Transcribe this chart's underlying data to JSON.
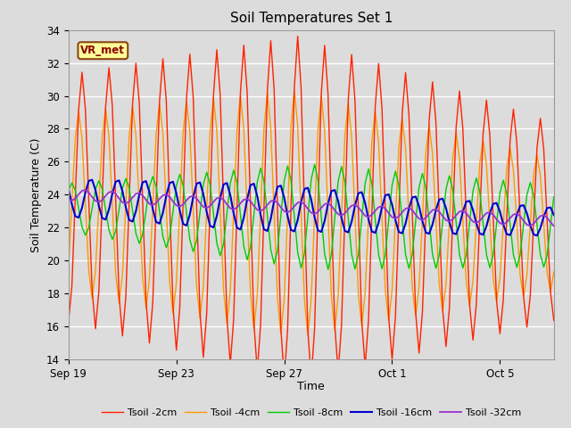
{
  "title": "Soil Temperatures Set 1",
  "xlabel": "Time",
  "ylabel": "Soil Temperature (C)",
  "ylim": [
    14,
    34
  ],
  "bg_color": "#dcdcdc",
  "plot_bg_color": "#dcdcdc",
  "grid_color": "#ffffff",
  "annotation_text": "VR_met",
  "annotation_bg": "#ffff99",
  "annotation_border": "#8B4513",
  "x_ticks_labels": [
    "Sep 19",
    "Sep 23",
    "Sep 27",
    "Oct 1",
    "Oct 5"
  ],
  "x_ticks_positions": [
    0,
    4,
    8,
    12,
    16
  ],
  "legend_entries": [
    "Tsoil -2cm",
    "Tsoil -4cm",
    "Tsoil -8cm",
    "Tsoil -16cm",
    "Tsoil -32cm"
  ],
  "line_colors": [
    "#ff2200",
    "#ff9900",
    "#00cc00",
    "#0000cc",
    "#9933cc"
  ],
  "title_fontsize": 11,
  "label_fontsize": 9,
  "tick_fontsize": 8.5
}
